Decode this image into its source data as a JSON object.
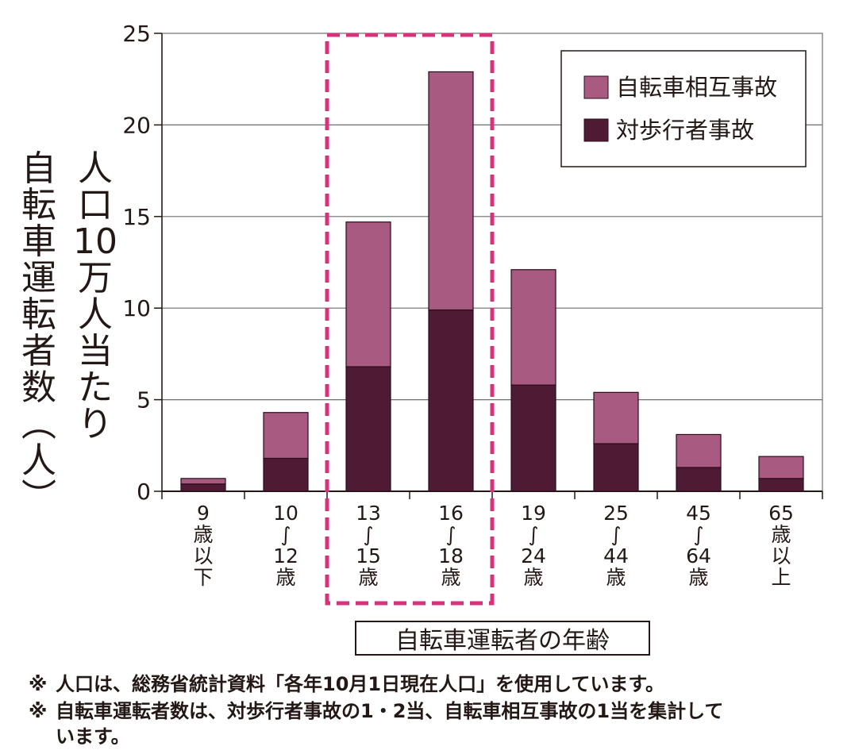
{
  "chart_data": {
    "type": "bar",
    "stacked": true,
    "categories": [
      [
        "9",
        "歳",
        "以",
        "下"
      ],
      [
        "10",
        "∫",
        "12",
        "歳"
      ],
      [
        "13",
        "∫",
        "15",
        "歳"
      ],
      [
        "16",
        "∫",
        "18",
        "歳"
      ],
      [
        "19",
        "∫",
        "24",
        "歳"
      ],
      [
        "25",
        "∫",
        "44",
        "歳"
      ],
      [
        "45",
        "∫",
        "64",
        "歳"
      ],
      [
        "65",
        "歳",
        "以",
        "上"
      ]
    ],
    "series": [
      {
        "name": "対歩行者事故",
        "color": "#4f1a33",
        "values": [
          0.4,
          1.8,
          6.8,
          9.9,
          5.8,
          2.6,
          1.3,
          0.7
        ]
      },
      {
        "name": "自転車相互事故",
        "color": "#a85a80",
        "values": [
          0.3,
          2.5,
          7.9,
          13.0,
          6.3,
          2.8,
          1.8,
          1.2
        ]
      }
    ],
    "legend_order": [
      "自転車相互事故",
      "対歩行者事故"
    ],
    "ylim": [
      0,
      25
    ],
    "yticks": [
      0,
      5,
      10,
      15,
      20,
      25
    ],
    "ylabel_columns": [
      "自転車運転者数(人)",
      "人口10万人当たり"
    ],
    "xlabel": "自転車運転者の年齢",
    "highlight": {
      "categories": [
        2,
        3
      ],
      "color": "#d6337c",
      "style": "dashed"
    },
    "grid": true
  },
  "notes": [
    {
      "mark": "※",
      "text": "人口は、総務省統計資料「各年10月1日現在人口」を使用しています。"
    },
    {
      "mark": "※",
      "text": "自転車運転者数は、対歩行者事故の1・2当、自転車相互事故の1当を集計して"
    },
    {
      "mark": "",
      "text": "います。"
    }
  ]
}
